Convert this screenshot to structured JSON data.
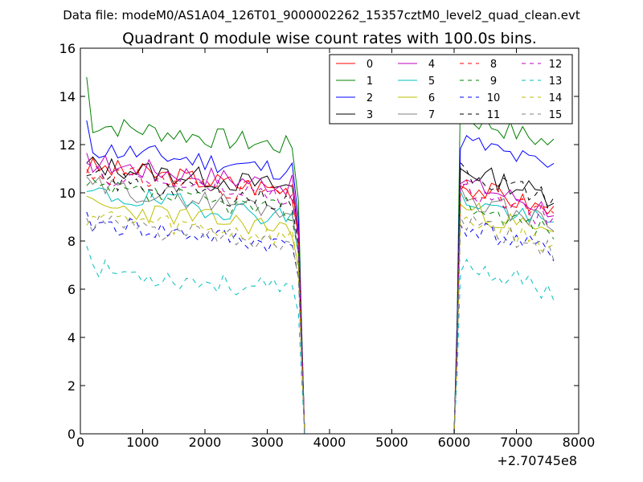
{
  "chart_data": {
    "type": "line",
    "suptitle": "Data file: modeM0/AS1A04_126T01_9000002262_15357cztM0_level2_quad_clean.evt",
    "title": "Quadrant 0 module wise count rates with 100.0s bins.",
    "xlabel": "",
    "ylabel": "",
    "x_offset_label": "+2.70745e8",
    "xlim": [
      0,
      8000
    ],
    "ylim": [
      0,
      16
    ],
    "xticks": [
      0,
      1000,
      2000,
      3000,
      4000,
      5000,
      6000,
      7000,
      8000
    ],
    "yticks": [
      0,
      2,
      4,
      6,
      8,
      10,
      12,
      14,
      16
    ],
    "legend_position": "top-right",
    "legend_columns": 4,
    "segments": {
      "seg1_x": [
        100,
        200,
        300,
        400,
        500,
        600,
        700,
        800,
        900,
        1000,
        1100,
        1200,
        1300,
        1400,
        1500,
        1600,
        1700,
        1800,
        1900,
        2000,
        2100,
        2200,
        2300,
        2400,
        2500,
        2600,
        2700,
        2800,
        2900,
        3000,
        3100,
        3200,
        3300,
        3400,
        3500,
        3550,
        3600
      ],
      "gap_x": [
        3700,
        5900
      ],
      "seg2_x": [
        6000,
        6050,
        6100,
        6200,
        6300,
        6400,
        6500,
        6600,
        6700,
        6800,
        6900,
        7000,
        7100,
        7200,
        7300,
        7400,
        7500,
        7600
      ]
    },
    "series": [
      {
        "name": "0",
        "color": "#ff0000",
        "dash": "solid",
        "level": 10.6,
        "level2": 9.8,
        "seed": 3
      },
      {
        "name": "1",
        "color": "#008000",
        "dash": "solid",
        "level": 12.4,
        "level2": 12.6,
        "seed": 7,
        "first": 14.8,
        "peak2": 14.1
      },
      {
        "name": "2",
        "color": "#0000ff",
        "dash": "solid",
        "level": 11.4,
        "level2": 11.6,
        "seed": 11,
        "first": 13.0
      },
      {
        "name": "3",
        "color": "#000000",
        "dash": "solid",
        "level": 10.7,
        "level2": 10.4,
        "seed": 13
      },
      {
        "name": "4",
        "color": "#bf00bf",
        "dash": "solid",
        "level": 10.8,
        "level2": 9.9,
        "seed": 17
      },
      {
        "name": "5",
        "color": "#00bfbf",
        "dash": "solid",
        "level": 9.5,
        "level2": 9.2,
        "seed": 19
      },
      {
        "name": "6",
        "color": "#bfbf00",
        "dash": "solid",
        "level": 9.0,
        "level2": 8.8,
        "seed": 23
      },
      {
        "name": "7",
        "color": "#808080",
        "dash": "solid",
        "level": 9.8,
        "level2": 9.3,
        "seed": 29
      },
      {
        "name": "8",
        "color": "#ff0000",
        "dash": "dashed",
        "level": 10.4,
        "level2": 9.6,
        "seed": 31
      },
      {
        "name": "9",
        "color": "#008000",
        "dash": "dashed",
        "level": 9.7,
        "level2": 9.0,
        "seed": 37
      },
      {
        "name": "10",
        "color": "#0000ff",
        "dash": "dashed",
        "level": 8.3,
        "level2": 8.1,
        "seed": 41
      },
      {
        "name": "11",
        "color": "#000000",
        "dash": "dashed",
        "level": 10.1,
        "level2": 10.3,
        "seed": 43
      },
      {
        "name": "12",
        "color": "#bf00bf",
        "dash": "dashed",
        "level": 10.3,
        "level2": 9.5,
        "seed": 47
      },
      {
        "name": "13",
        "color": "#00bfbf",
        "dash": "dashed",
        "level": 6.4,
        "level2": 6.5,
        "seed": 53,
        "first": 7.8
      },
      {
        "name": "14",
        "color": "#bfbf00",
        "dash": "dashed",
        "level": 8.6,
        "level2": 8.4,
        "seed": 59
      },
      {
        "name": "15",
        "color": "#808080",
        "dash": "dashed",
        "level": 8.3,
        "level2": 8.2,
        "seed": 61
      }
    ]
  }
}
